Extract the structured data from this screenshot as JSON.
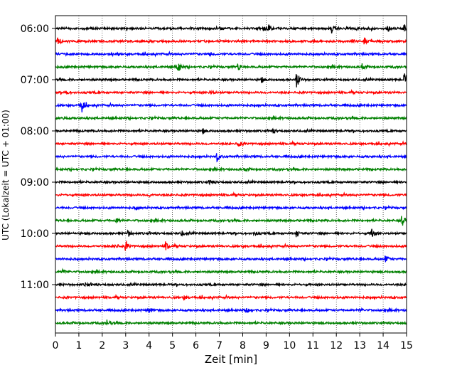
{
  "chart_data": {
    "type": "line",
    "subtype": "helicorder-seismogram",
    "title": "",
    "xlabel": "Zeit  [min]",
    "ylabel": "UTC (Lokalzeit = UTC + 01:00)",
    "xlim": [
      0,
      15
    ],
    "x_ticks": [
      "0",
      "1",
      "2",
      "3",
      "4",
      "5",
      "6",
      "7",
      "8",
      "9",
      "10",
      "11",
      "12",
      "13",
      "14",
      "15"
    ],
    "y_tick_labels": [
      "06:00",
      "07:00",
      "08:00",
      "09:00",
      "10:00",
      "11:00"
    ],
    "y_tick_rows": [
      0,
      4,
      8,
      12,
      16,
      20
    ],
    "trace_minutes": 15,
    "grid": "vertical dotted",
    "colors": [
      "#000000",
      "#ff0000",
      "#0000ff",
      "#008000"
    ],
    "traces": [
      {
        "start": "06:00",
        "color": "#000000",
        "events": [
          [
            7.0,
            0.2
          ],
          [
            8.9,
            0.4
          ],
          [
            9.1,
            0.5
          ],
          [
            11.8,
            0.7
          ],
          [
            14.2,
            0.5
          ],
          [
            14.9,
            0.6
          ]
        ]
      },
      {
        "start": "06:15",
        "color": "#ff0000",
        "events": [
          [
            0.1,
            0.8
          ],
          [
            13.2,
            0.5
          ]
        ]
      },
      {
        "start": "06:30",
        "color": "#0000ff",
        "events": [
          [
            6.6,
            0.3
          ]
        ]
      },
      {
        "start": "06:45",
        "color": "#008000",
        "events": [
          [
            5.2,
            1.4
          ],
          [
            7.8,
            0.7
          ],
          [
            13.1,
            0.5
          ]
        ]
      },
      {
        "start": "07:00",
        "color": "#000000",
        "events": [
          [
            8.8,
            0.4
          ],
          [
            10.3,
            1.4
          ],
          [
            14.9,
            1.0
          ]
        ]
      },
      {
        "start": "07:15",
        "color": "#ff0000",
        "events": [
          [
            0.4,
            0.4
          ],
          [
            6.6,
            0.4
          ]
        ]
      },
      {
        "start": "07:30",
        "color": "#0000ff",
        "events": [
          [
            1.1,
            1.5
          ]
        ]
      },
      {
        "start": "07:45",
        "color": "#008000",
        "events": [
          [
            0.3,
            0.4
          ]
        ]
      },
      {
        "start": "08:00",
        "color": "#000000",
        "events": [
          [
            6.3,
            0.3
          ],
          [
            9.3,
            0.3
          ]
        ]
      },
      {
        "start": "08:15",
        "color": "#ff0000",
        "events": [
          [
            7.8,
            0.6
          ]
        ]
      },
      {
        "start": "08:30",
        "color": "#0000ff",
        "events": [
          [
            6.9,
            0.7
          ]
        ]
      },
      {
        "start": "08:45",
        "color": "#008000",
        "events": [
          [
            8.1,
            0.3
          ]
        ]
      },
      {
        "start": "09:00",
        "color": "#000000",
        "events": [
          [
            6.6,
            0.3
          ]
        ]
      },
      {
        "start": "09:15",
        "color": "#ff0000",
        "events": [
          [
            4.0,
            0.2
          ]
        ]
      },
      {
        "start": "09:30",
        "color": "#0000ff",
        "events": [
          [
            3.4,
            0.4
          ]
        ]
      },
      {
        "start": "09:45",
        "color": "#008000",
        "events": [
          [
            2.6,
            0.4
          ],
          [
            14.8,
            1.0
          ]
        ]
      },
      {
        "start": "10:00",
        "color": "#000000",
        "events": [
          [
            3.1,
            0.5
          ],
          [
            5.4,
            0.4
          ],
          [
            10.3,
            0.7
          ],
          [
            13.5,
            0.8
          ],
          [
            8.5,
            0.3
          ]
        ]
      },
      {
        "start": "10:15",
        "color": "#ff0000",
        "events": [
          [
            2.5,
            0.6
          ],
          [
            3.0,
            0.8
          ],
          [
            4.7,
            0.7
          ]
        ]
      },
      {
        "start": "10:30",
        "color": "#0000ff",
        "events": [
          [
            14.1,
            0.6
          ]
        ]
      },
      {
        "start": "10:45",
        "color": "#008000",
        "events": [
          [
            0.3,
            0.4
          ]
        ]
      },
      {
        "start": "11:00",
        "color": "#000000",
        "events": [
          [
            1.3,
            0.4
          ]
        ]
      },
      {
        "start": "11:15",
        "color": "#ff0000",
        "events": [
          [
            5.5,
            0.3
          ]
        ]
      },
      {
        "start": "11:30",
        "color": "#0000ff",
        "events": [
          [
            4.0,
            0.6
          ],
          [
            8.2,
            0.6
          ],
          [
            13.0,
            0.3
          ]
        ]
      },
      {
        "start": "11:45",
        "color": "#008000",
        "events": [
          [
            2.2,
            0.6
          ]
        ]
      }
    ]
  }
}
